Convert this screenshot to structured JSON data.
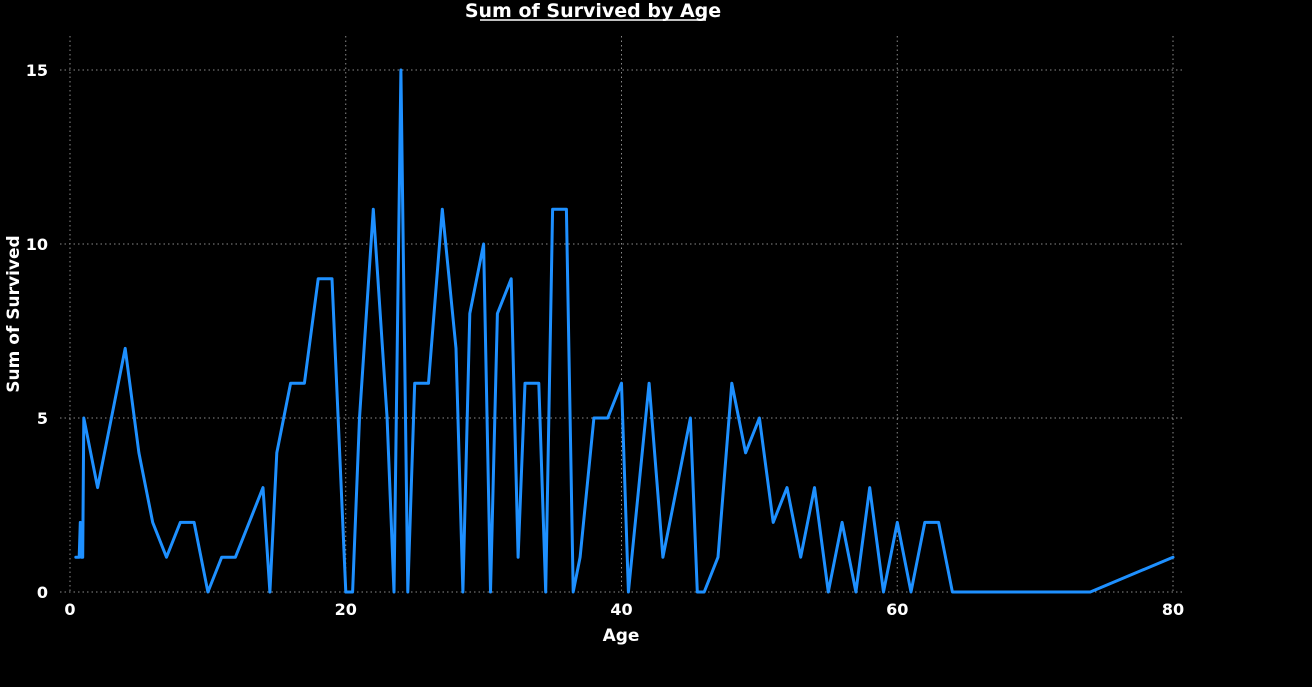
{
  "chart_data": {
    "type": "line",
    "title": "Sum of Survived by Age",
    "xlabel": "Age",
    "ylabel": "Sum of Survived",
    "xlim": [
      0,
      80
    ],
    "ylim": [
      0,
      15
    ],
    "x_ticks": [
      "0",
      "20",
      "40",
      "60",
      "80"
    ],
    "y_ticks": [
      "0",
      "5",
      "10",
      "15"
    ],
    "grid": true,
    "line_color": "#1e90ff",
    "background": "#000000",
    "series": [
      {
        "x": [
          0.42,
          0.67,
          0.75,
          0.83,
          0.92,
          1,
          2,
          3,
          4,
          5,
          6,
          7,
          8,
          9,
          10,
          11,
          12,
          13,
          14,
          14.5,
          15,
          16,
          17,
          18,
          19,
          20,
          20.5,
          21,
          22,
          23,
          23.5,
          24,
          24.5,
          25,
          26,
          27,
          28,
          28.5,
          29,
          30,
          30.5,
          31,
          32,
          32.5,
          33,
          34,
          34.5,
          35,
          36,
          36.5,
          37,
          38,
          39,
          40,
          40.5,
          41,
          42,
          43,
          44,
          45,
          45.5,
          46,
          47,
          48,
          49,
          50,
          51,
          52,
          53,
          54,
          55,
          56,
          57,
          58,
          59,
          60,
          61,
          62,
          63,
          64,
          65,
          66,
          70,
          71,
          74,
          80
        ],
        "y": [
          1,
          1,
          2,
          1,
          1,
          5,
          3,
          5,
          7,
          4,
          2,
          1,
          2,
          2,
          0,
          1,
          1,
          2,
          3,
          0,
          4,
          6,
          6,
          9,
          9,
          0,
          0,
          5,
          11,
          5,
          0,
          15,
          0,
          6,
          6,
          11,
          7,
          0,
          8,
          10,
          0,
          8,
          9,
          1,
          6,
          6,
          0,
          11,
          11,
          0,
          1,
          5,
          5,
          6,
          0,
          2,
          6,
          1,
          3,
          5,
          0,
          0,
          1,
          6,
          4,
          5,
          2,
          3,
          1,
          3,
          0,
          2,
          0,
          3,
          0,
          2,
          0,
          2,
          2,
          0,
          0,
          0,
          0,
          0,
          0,
          1
        ]
      }
    ]
  }
}
